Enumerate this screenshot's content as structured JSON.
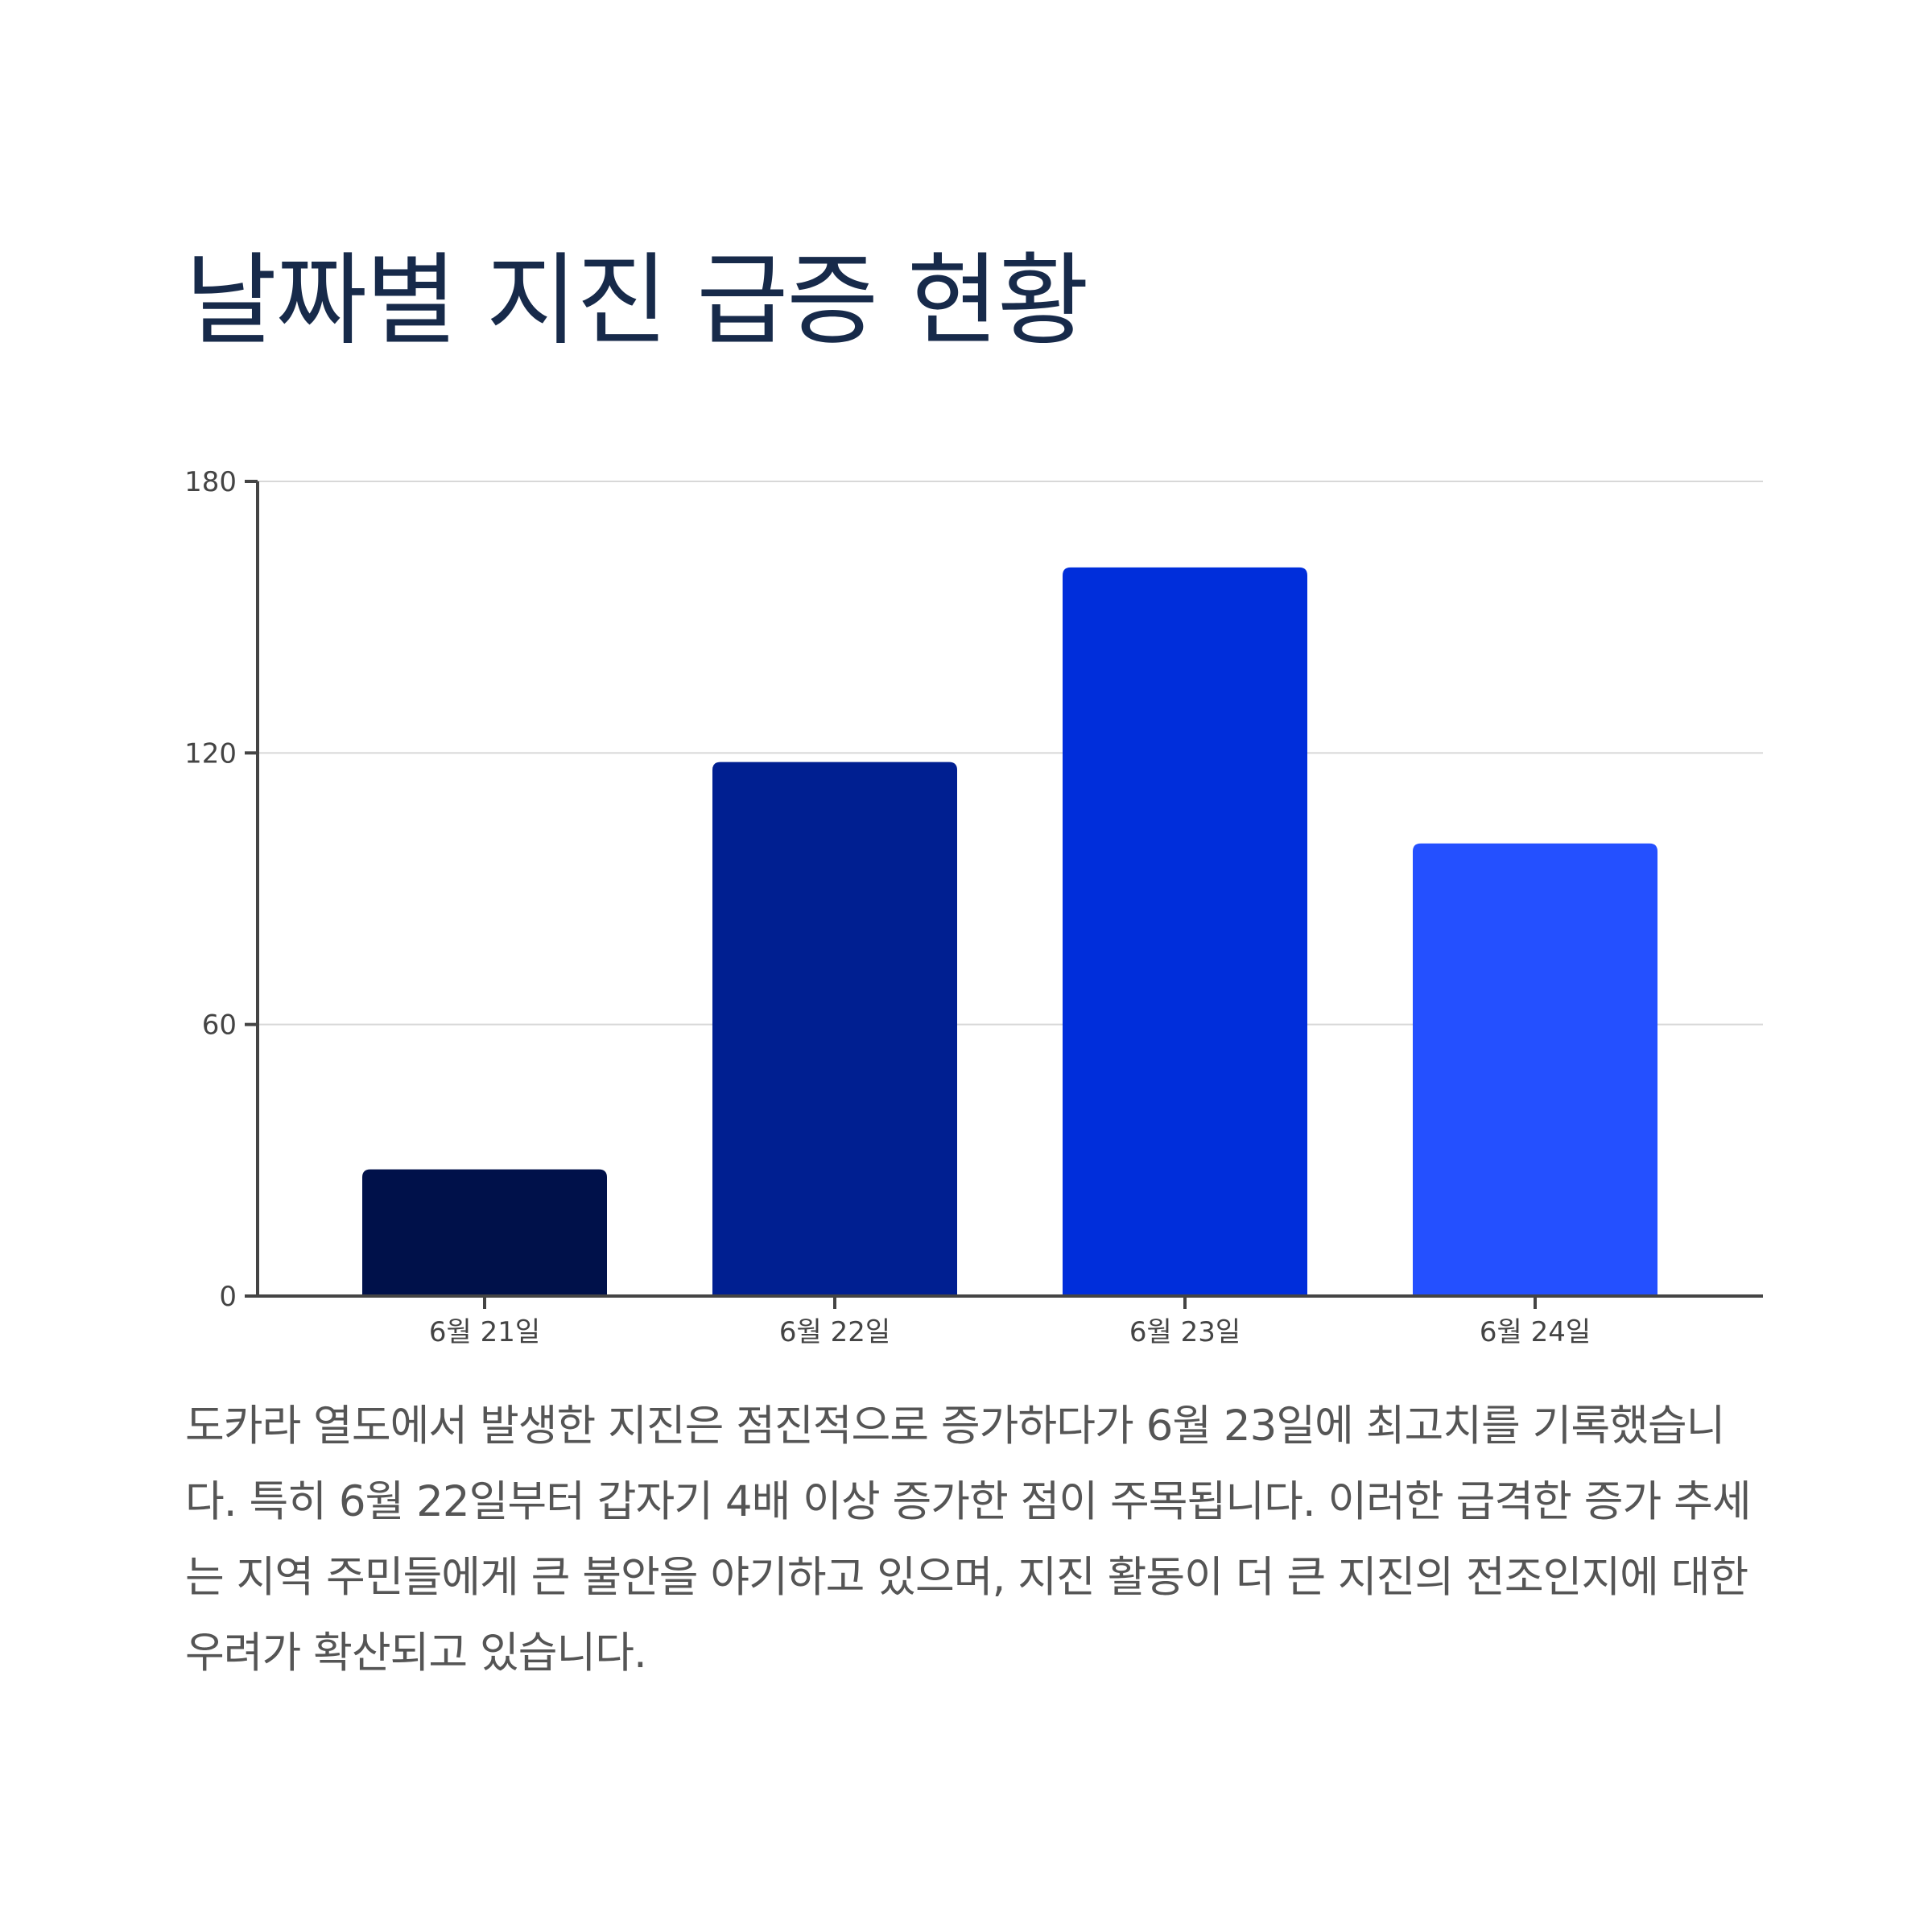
{
  "title": "날짜별 지진 급증 현황",
  "description": "도카라 열도에서 발생한 지진은 점진적으로 증가하다가 6월 23일에 최고치를 기록했습니다. 특히 6월 22일부터 갑자기 4배 이상 증가한 점이 주목됩니다. 이러한 급격한 증가 추세는 지역 주민들에게 큰 불안을 야기하고 있으며, 지진 활동이 더 큰 지진의 전조인지에 대한 우려가 확산되고 있습니다.",
  "chart_data": {
    "type": "bar",
    "title": "날짜별 지진 급증 현황",
    "xlabel": "",
    "ylabel": "",
    "categories": [
      "6월 21일",
      "6월 22일",
      "6월 23일",
      "6월 24일"
    ],
    "values": [
      28,
      118,
      161,
      100
    ],
    "bar_colors": [
      "#00114a",
      "#001f91",
      "#002edb",
      "#2450ff"
    ],
    "ylim": [
      0,
      180
    ],
    "yticks": [
      0,
      60,
      120,
      180
    ],
    "grid": true,
    "legend": "none"
  }
}
